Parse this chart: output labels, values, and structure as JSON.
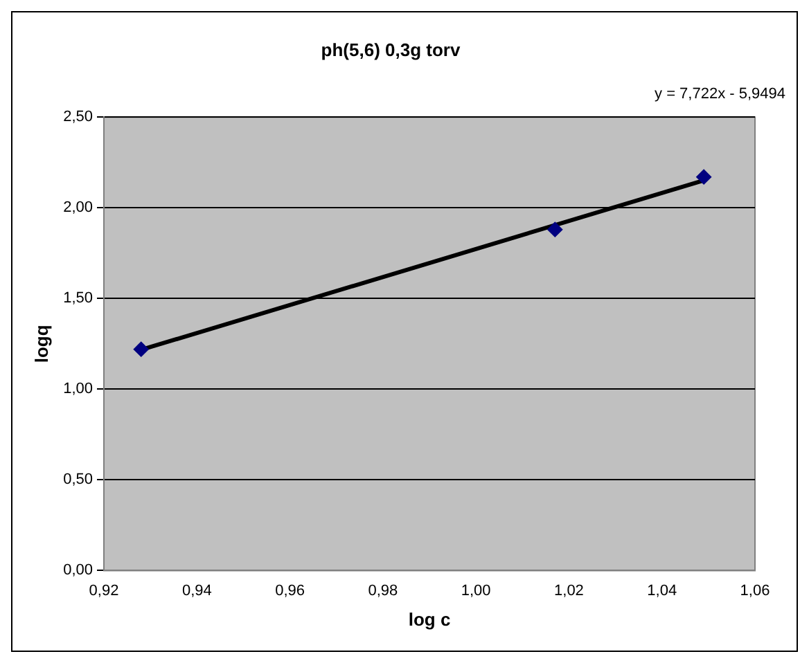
{
  "chart_data": {
    "type": "scatter",
    "title": "ph(5,6) 0,3g torv",
    "xlabel": "log c",
    "ylabel": "logq",
    "annotations": [
      "y = 7,722x - 5,9494"
    ],
    "x": [
      0.928,
      1.017,
      1.049
    ],
    "series": [
      {
        "color": "#000080",
        "values": [
          1.22,
          1.88,
          2.17
        ],
        "marker": "diamond"
      },
      {
        "type": "line",
        "color": "#000000",
        "x": [
          0.928,
          1.049
        ],
        "values": [
          1.217,
          2.151
        ],
        "marker": "none",
        "line_style": "solid"
      }
    ],
    "xlim": [
      0.92,
      1.06
    ],
    "xticks": [
      {
        "value": 0.92,
        "label": "0,92"
      },
      {
        "value": 0.94,
        "label": "0,94"
      },
      {
        "value": 0.96,
        "label": "0,96"
      },
      {
        "value": 0.98,
        "label": "0,98"
      },
      {
        "value": 1.0,
        "label": "1,00"
      },
      {
        "value": 1.02,
        "label": "1,02"
      },
      {
        "value": 1.04,
        "label": "1,04"
      },
      {
        "value": 1.06,
        "label": "1,06"
      }
    ],
    "ylim": [
      0,
      2.5
    ],
    "yticks": [
      {
        "value": 0,
        "label": "0,00"
      },
      {
        "value": 0.5,
        "label": "0,50"
      },
      {
        "value": 1.0,
        "label": "1,00"
      },
      {
        "value": 1.5,
        "label": "1,50"
      },
      {
        "value": 2.0,
        "label": "2,00"
      },
      {
        "value": 2.5,
        "label": "2,50"
      }
    ],
    "grid": "y",
    "legend": false
  }
}
